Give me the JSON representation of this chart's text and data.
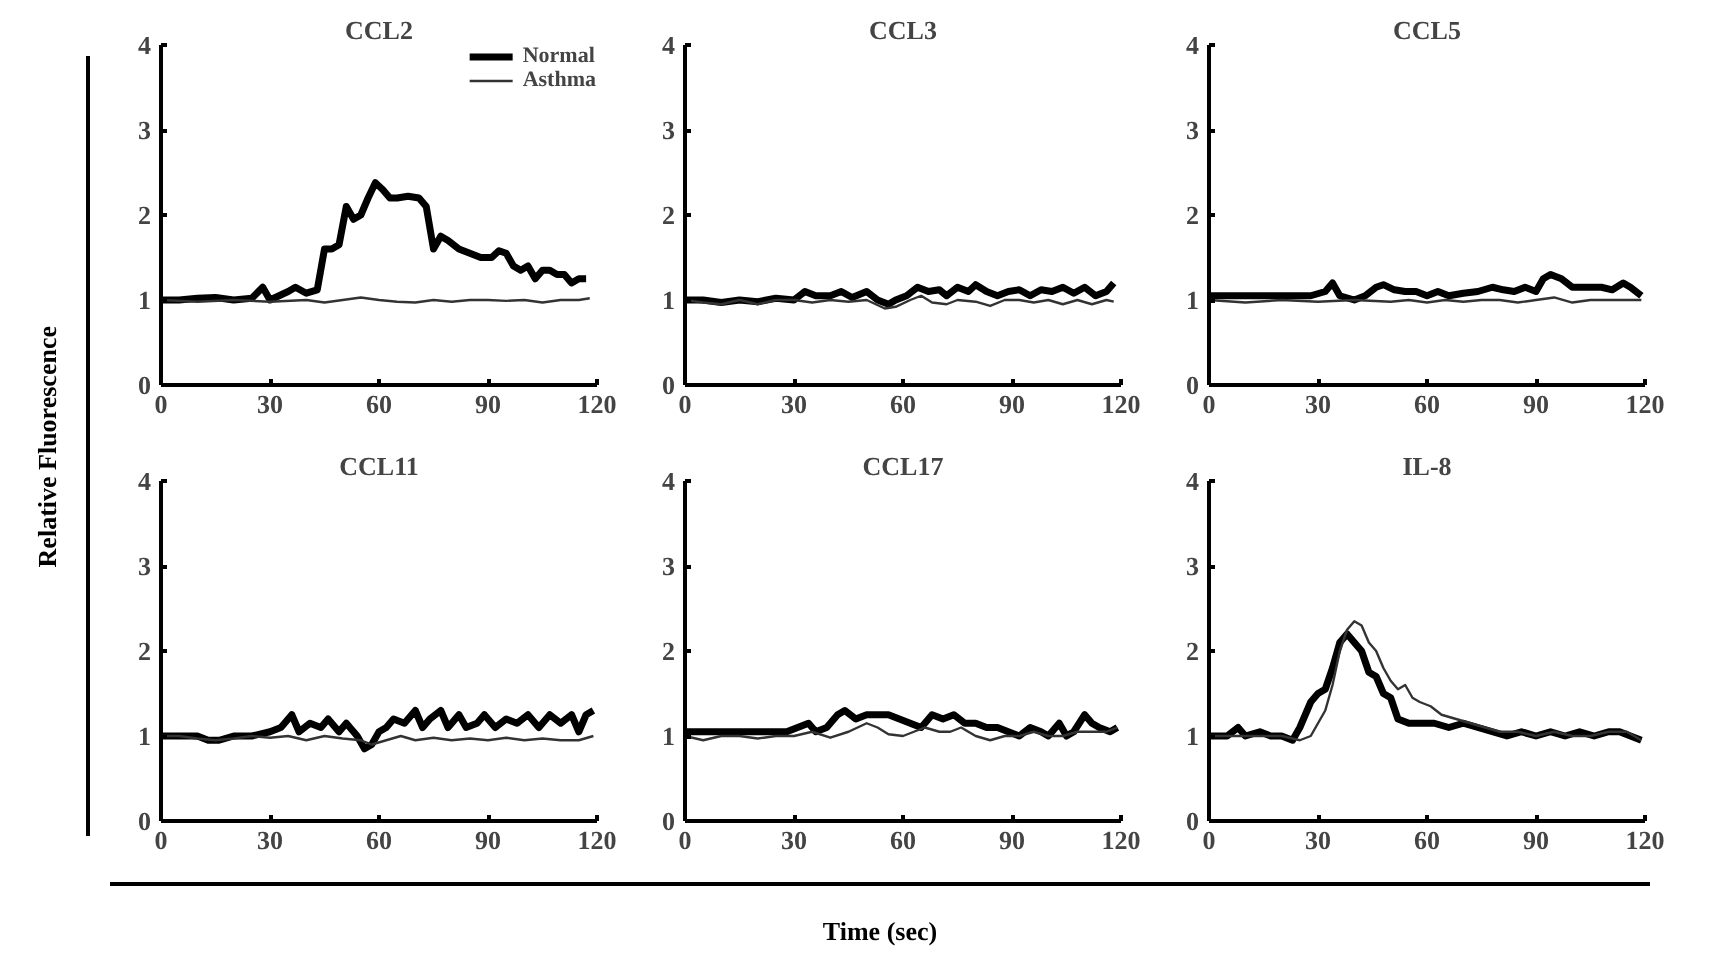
{
  "chart_data": [
    {
      "type": "line",
      "title": "CCL2",
      "ylabel": "Relative Fluorescence",
      "xlim": [
        0,
        120
      ],
      "ylim": [
        0,
        4
      ],
      "xticks": [
        0,
        30,
        60,
        90,
        120
      ],
      "yticks": [
        0,
        1,
        2,
        3,
        4
      ],
      "legend": "top right",
      "series": [
        {
          "name": "Normal",
          "color": "#000000",
          "x": [
            0,
            5,
            10,
            15,
            20,
            25,
            28,
            30,
            35,
            37,
            40,
            43,
            45,
            47,
            49,
            51,
            53,
            55,
            57,
            59,
            61,
            63,
            65,
            68,
            71,
            73,
            75,
            77,
            79,
            82,
            85,
            88,
            91,
            93,
            95,
            97,
            99,
            101,
            103,
            105,
            107,
            109,
            111,
            113,
            115,
            117
          ],
          "values": [
            1.0,
            1.0,
            1.02,
            1.03,
            1.0,
            1.02,
            1.15,
            1.0,
            1.1,
            1.15,
            1.08,
            1.12,
            1.6,
            1.6,
            1.65,
            2.1,
            1.95,
            2.0,
            2.2,
            2.38,
            2.3,
            2.2,
            2.2,
            2.22,
            2.2,
            2.1,
            1.6,
            1.75,
            1.7,
            1.6,
            1.55,
            1.5,
            1.5,
            1.58,
            1.55,
            1.4,
            1.35,
            1.4,
            1.25,
            1.35,
            1.35,
            1.3,
            1.3,
            1.2,
            1.25,
            1.25
          ]
        },
        {
          "name": "Asthma",
          "color": "#333333",
          "x": [
            0,
            10,
            20,
            30,
            40,
            45,
            50,
            55,
            60,
            65,
            70,
            75,
            80,
            85,
            90,
            95,
            100,
            105,
            110,
            115,
            118
          ],
          "values": [
            1.0,
            0.98,
            1.0,
            0.98,
            1.0,
            0.97,
            1.0,
            1.03,
            1.0,
            0.98,
            0.97,
            1.0,
            0.98,
            1.0,
            1.0,
            0.99,
            1.0,
            0.97,
            1.0,
            1.0,
            1.02
          ]
        }
      ]
    },
    {
      "type": "line",
      "title": "CCL3",
      "xlim": [
        0,
        120
      ],
      "ylim": [
        0,
        4
      ],
      "xticks": [
        0,
        30,
        60,
        90,
        120
      ],
      "yticks": [
        0,
        1,
        2,
        3,
        4
      ],
      "series": [
        {
          "color": "#000000",
          "x": [
            0,
            5,
            10,
            15,
            20,
            25,
            30,
            33,
            36,
            40,
            43,
            46,
            50,
            53,
            56,
            58,
            61,
            64,
            67,
            70,
            72,
            75,
            78,
            80,
            83,
            86,
            89,
            92,
            95,
            98,
            101,
            104,
            107,
            110,
            113,
            116,
            118
          ],
          "values": [
            1.0,
            1.0,
            0.97,
            1.0,
            0.98,
            1.02,
            1.0,
            1.1,
            1.05,
            1.05,
            1.1,
            1.03,
            1.1,
            1.0,
            0.95,
            1.0,
            1.05,
            1.15,
            1.1,
            1.12,
            1.05,
            1.15,
            1.1,
            1.18,
            1.1,
            1.05,
            1.1,
            1.12,
            1.05,
            1.12,
            1.1,
            1.15,
            1.08,
            1.15,
            1.05,
            1.1,
            1.2
          ]
        },
        {
          "color": "#333333",
          "x": [
            0,
            5,
            10,
            15,
            20,
            25,
            30,
            35,
            40,
            45,
            50,
            55,
            58,
            62,
            65,
            68,
            72,
            75,
            80,
            84,
            88,
            92,
            96,
            100,
            104,
            108,
            112,
            116,
            118
          ],
          "values": [
            1.0,
            0.97,
            0.95,
            1.0,
            0.95,
            1.0,
            1.0,
            0.97,
            1.0,
            0.98,
            1.0,
            0.9,
            0.92,
            1.0,
            1.05,
            0.97,
            0.95,
            1.0,
            0.98,
            0.93,
            1.0,
            1.0,
            0.97,
            1.0,
            0.95,
            1.0,
            0.95,
            1.0,
            0.98
          ]
        }
      ]
    },
    {
      "type": "line",
      "title": "CCL5",
      "xlim": [
        0,
        120
      ],
      "ylim": [
        0,
        4
      ],
      "xticks": [
        0,
        30,
        60,
        90,
        120
      ],
      "yticks": [
        0,
        1,
        2,
        3,
        4
      ],
      "series": [
        {
          "color": "#000000",
          "x": [
            0,
            10,
            20,
            28,
            32,
            34,
            36,
            40,
            43,
            46,
            48,
            51,
            54,
            57,
            60,
            63,
            66,
            70,
            74,
            78,
            81,
            84,
            87,
            90,
            92,
            94,
            97,
            100,
            104,
            108,
            111,
            114,
            116,
            119
          ],
          "values": [
            1.05,
            1.05,
            1.05,
            1.05,
            1.1,
            1.2,
            1.05,
            1.0,
            1.05,
            1.15,
            1.18,
            1.12,
            1.1,
            1.1,
            1.05,
            1.1,
            1.05,
            1.08,
            1.1,
            1.15,
            1.12,
            1.1,
            1.15,
            1.1,
            1.25,
            1.3,
            1.25,
            1.15,
            1.15,
            1.15,
            1.12,
            1.2,
            1.15,
            1.05
          ]
        },
        {
          "color": "#333333",
          "x": [
            0,
            10,
            20,
            30,
            40,
            50,
            55,
            60,
            65,
            70,
            75,
            80,
            85,
            90,
            95,
            100,
            105,
            110,
            115,
            119
          ],
          "values": [
            1.0,
            0.97,
            1.0,
            0.98,
            1.0,
            0.98,
            1.0,
            0.97,
            1.0,
            0.98,
            1.0,
            1.0,
            0.97,
            1.0,
            1.03,
            0.97,
            1.0,
            1.0,
            1.0,
            1.0
          ]
        }
      ]
    },
    {
      "type": "line",
      "title": "CCL11",
      "xlim": [
        0,
        120
      ],
      "ylim": [
        0,
        4
      ],
      "xticks": [
        0,
        30,
        60,
        90,
        120
      ],
      "yticks": [
        0,
        1,
        2,
        3,
        4
      ],
      "series": [
        {
          "color": "#000000",
          "x": [
            0,
            5,
            10,
            13,
            16,
            20,
            25,
            30,
            33,
            36,
            38,
            41,
            44,
            46,
            49,
            51,
            54,
            56,
            58,
            60,
            62,
            64,
            67,
            70,
            72,
            74,
            77,
            79,
            82,
            84,
            87,
            89,
            92,
            95,
            98,
            101,
            104,
            107,
            110,
            113,
            115,
            117,
            119
          ],
          "values": [
            1.0,
            1.0,
            1.0,
            0.95,
            0.95,
            1.0,
            1.0,
            1.05,
            1.1,
            1.25,
            1.05,
            1.15,
            1.1,
            1.2,
            1.05,
            1.15,
            1.0,
            0.85,
            0.9,
            1.05,
            1.1,
            1.2,
            1.15,
            1.3,
            1.1,
            1.2,
            1.3,
            1.1,
            1.25,
            1.1,
            1.15,
            1.25,
            1.1,
            1.2,
            1.15,
            1.25,
            1.1,
            1.25,
            1.15,
            1.25,
            1.05,
            1.25,
            1.3
          ]
        },
        {
          "color": "#333333",
          "x": [
            0,
            5,
            10,
            15,
            20,
            25,
            30,
            35,
            40,
            45,
            50,
            55,
            58,
            62,
            66,
            70,
            75,
            80,
            85,
            90,
            95,
            100,
            105,
            110,
            115,
            119
          ],
          "values": [
            1.0,
            1.0,
            0.97,
            0.95,
            0.97,
            1.0,
            0.98,
            1.0,
            0.95,
            1.0,
            0.97,
            0.95,
            0.9,
            0.95,
            1.0,
            0.95,
            0.98,
            0.95,
            0.97,
            0.95,
            0.98,
            0.95,
            0.97,
            0.95,
            0.95,
            1.0
          ]
        }
      ]
    },
    {
      "type": "line",
      "title": "CCL17",
      "xlabel": "Time (sec)",
      "xlim": [
        0,
        120
      ],
      "ylim": [
        0,
        4
      ],
      "xticks": [
        0,
        30,
        60,
        90,
        120
      ],
      "yticks": [
        0,
        1,
        2,
        3,
        4
      ],
      "series": [
        {
          "color": "#000000",
          "x": [
            0,
            5,
            10,
            15,
            20,
            25,
            28,
            31,
            34,
            36,
            39,
            42,
            44,
            47,
            50,
            53,
            56,
            59,
            62,
            65,
            68,
            71,
            74,
            77,
            80,
            83,
            86,
            89,
            92,
            95,
            98,
            100,
            103,
            105,
            107,
            110,
            112,
            114,
            117,
            119
          ],
          "values": [
            1.05,
            1.05,
            1.05,
            1.05,
            1.05,
            1.05,
            1.05,
            1.1,
            1.15,
            1.05,
            1.1,
            1.25,
            1.3,
            1.2,
            1.25,
            1.25,
            1.25,
            1.2,
            1.15,
            1.1,
            1.25,
            1.2,
            1.25,
            1.15,
            1.15,
            1.1,
            1.1,
            1.05,
            1.0,
            1.1,
            1.05,
            1.0,
            1.15,
            1.0,
            1.05,
            1.25,
            1.15,
            1.1,
            1.05,
            1.1
          ]
        },
        {
          "color": "#333333",
          "x": [
            0,
            5,
            10,
            15,
            20,
            25,
            30,
            35,
            40,
            45,
            50,
            53,
            56,
            60,
            63,
            66,
            70,
            73,
            76,
            80,
            84,
            88,
            92,
            96,
            100,
            104,
            108,
            112,
            116,
            119
          ],
          "values": [
            1.0,
            0.95,
            1.0,
            1.0,
            0.97,
            1.0,
            1.0,
            1.05,
            0.98,
            1.05,
            1.15,
            1.1,
            1.02,
            1.0,
            1.05,
            1.1,
            1.05,
            1.05,
            1.1,
            1.0,
            0.95,
            1.0,
            1.0,
            1.05,
            1.0,
            1.0,
            1.05,
            1.05,
            1.05,
            1.1
          ]
        }
      ]
    },
    {
      "type": "line",
      "title": "IL-8",
      "xlim": [
        0,
        120
      ],
      "ylim": [
        0,
        4
      ],
      "xticks": [
        0,
        30,
        60,
        90,
        120
      ],
      "yticks": [
        0,
        1,
        2,
        3,
        4
      ],
      "series": [
        {
          "color": "#000000",
          "x": [
            0,
            5,
            8,
            10,
            14,
            17,
            20,
            23,
            25,
            28,
            30,
            32,
            34,
            36,
            38,
            40,
            42,
            44,
            46,
            48,
            50,
            52,
            55,
            58,
            62,
            66,
            70,
            74,
            78,
            82,
            86,
            90,
            94,
            98,
            102,
            106,
            110,
            113,
            116,
            119
          ],
          "values": [
            1.0,
            1.0,
            1.1,
            1.0,
            1.05,
            1.0,
            1.0,
            0.95,
            1.1,
            1.4,
            1.5,
            1.55,
            1.8,
            2.1,
            2.2,
            2.1,
            2.0,
            1.75,
            1.7,
            1.5,
            1.45,
            1.2,
            1.15,
            1.15,
            1.15,
            1.1,
            1.15,
            1.1,
            1.05,
            1.0,
            1.05,
            1.0,
            1.05,
            1.0,
            1.05,
            1.0,
            1.05,
            1.05,
            1.0,
            0.95
          ]
        },
        {
          "color": "#333333",
          "x": [
            0,
            10,
            20,
            25,
            28,
            30,
            32,
            34,
            36,
            38,
            40,
            42,
            44,
            46,
            48,
            50,
            52,
            54,
            56,
            58,
            61,
            64,
            68,
            72,
            76,
            80,
            85,
            90,
            95,
            100,
            105,
            110,
            115,
            119
          ],
          "values": [
            1.0,
            1.0,
            1.0,
            0.95,
            1.0,
            1.15,
            1.3,
            1.6,
            2.0,
            2.25,
            2.35,
            2.3,
            2.1,
            2.0,
            1.8,
            1.65,
            1.55,
            1.6,
            1.45,
            1.4,
            1.35,
            1.25,
            1.2,
            1.15,
            1.1,
            1.05,
            1.05,
            1.0,
            1.05,
            1.0,
            1.0,
            1.05,
            1.05,
            0.95
          ]
        }
      ]
    }
  ]
}
